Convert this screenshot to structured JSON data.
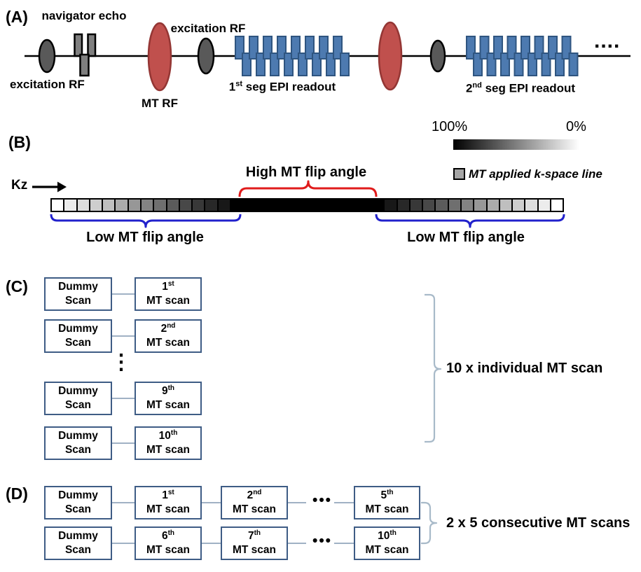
{
  "panel_a": {
    "label": "(A)",
    "navigator_echo": "navigator echo",
    "excitation_rf_left": "excitation RF",
    "mt_rf": "MT RF",
    "excitation_rf_mid": "excitation RF",
    "seg1": {
      "num": "1",
      "sup": "st",
      "rest": " seg EPI readout"
    },
    "seg2": {
      "num": "2",
      "sup": "nd",
      "rest": " seg EPI readout"
    },
    "trailing_dots": "...."
  },
  "panel_b": {
    "label": "(B)",
    "kz": "Kz",
    "high_label": "High MT flip angle",
    "low_label_left": "Low MT flip angle",
    "low_label_right": "Low MT flip angle",
    "scale": {
      "left": "100%",
      "right": "0%"
    },
    "legend": "MT applied k-space line",
    "kspace_shades": [
      "#ffffff",
      "#ececec",
      "#dddddd",
      "#cecece",
      "#bfbfbf",
      "#ababab",
      "#979797",
      "#838383",
      "#6f6f6f",
      "#5b5b5b",
      "#484848",
      "#383838",
      "#282828",
      "#181818",
      "#000000",
      "#000000",
      "#000000",
      "#000000",
      "#000000",
      "#000000",
      "#000000",
      "#000000",
      "#000000",
      "#000000",
      "#000000",
      "#000000",
      "#181818",
      "#282828",
      "#383838",
      "#484848",
      "#5b5b5b",
      "#6f6f6f",
      "#838383",
      "#979797",
      "#ababab",
      "#bfbfbf",
      "#cecece",
      "#dddddd",
      "#ececec",
      "#ffffff"
    ]
  },
  "panel_c": {
    "label": "(C)",
    "vdots": "⋮",
    "brace_label": "10 x individual MT scan",
    "rows": [
      {
        "left1": "Dummy",
        "left2": "Scan",
        "num": "1",
        "sup": "st",
        "mt": "MT scan"
      },
      {
        "left1": "Dummy",
        "left2": "Scan",
        "num": "2",
        "sup": "nd",
        "mt": "MT scan"
      },
      {
        "left1": "Dummy",
        "left2": "Scan",
        "num": "9",
        "sup": "th",
        "mt": "MT scan"
      },
      {
        "left1": "Dummy",
        "left2": "Scan",
        "num": "10",
        "sup": "th",
        "mt": "MT scan"
      }
    ]
  },
  "panel_d": {
    "label": "(D)",
    "brace_label": "2 x 5 consecutive MT scans",
    "rows": [
      {
        "left1": "Dummy",
        "left2": "Scan",
        "dots": "•••",
        "b1num": "1",
        "b1sup": "st",
        "b1l2": "MT scan",
        "b2num": "2",
        "b2sup": "nd",
        "b2l2": "MT scan",
        "b3num": "5",
        "b3sup": "th",
        "b3l2": "MT scan"
      },
      {
        "left1": "Dummy",
        "left2": "Scan",
        "dots": "•••",
        "b1num": "6",
        "b1sup": "th",
        "b1l2": "MT scan",
        "b2num": "7",
        "b2sup": "th",
        "b2l2": "MT scan",
        "b3num": "10",
        "b3sup": "th",
        "b3l2": "MT scan"
      }
    ]
  },
  "colors": {
    "epi_fill": "#4d7ab0",
    "epi_stroke": "#2f5580",
    "gray_fill": "#595959",
    "nav_gray_fill": "#7f7f7f",
    "mt_rf_fill": "#c0504d",
    "mt_rf_stroke": "#943634",
    "box_border": "#3e5c85",
    "connector": "#8097b1",
    "bracket": "#a8bac9",
    "brace_red": "#e01b1b",
    "brace_blue": "#2121cc",
    "legend_square_fill": "#a6a6a6"
  }
}
